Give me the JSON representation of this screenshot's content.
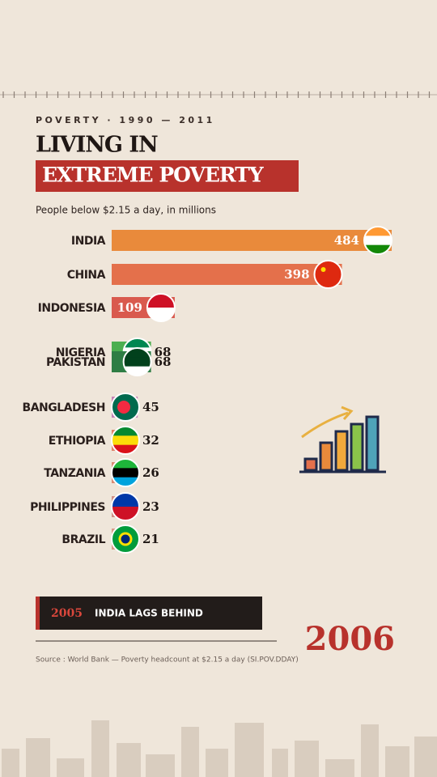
{
  "chart_data": {
    "type": "bar",
    "kicker": "POVERTY · 1990 — 2011",
    "title_line1": "LIVING IN",
    "title_line2": "EXTREME POVERTY",
    "subtitle": "People below $2.15 a day, in millions",
    "categories": [
      "INDIA",
      "CHINA",
      "INDONESIA",
      "NIGERIA",
      "PAKISTAN",
      "BANGLADESH",
      "ETHIOPIA",
      "TANZANIA",
      "PHILIPPINES",
      "BRAZIL"
    ],
    "values": [
      484,
      398,
      109,
      68,
      68,
      45,
      32,
      26,
      23,
      21
    ],
    "colors": [
      "#e98a3b",
      "#e4704b",
      "#d95a4e",
      "#4caf50",
      "#2e7d44",
      "#c583b6",
      "#e0826a",
      "#d98b74",
      "#cf8f86",
      "#d99a88"
    ],
    "annotation_year": "2005",
    "annotation_text": "INDIA LAGS BEHIND",
    "current_year": "2006",
    "source": "Source : World Bank — Poverty headcount at $2.15 a day (SI.POV.DDAY)"
  }
}
